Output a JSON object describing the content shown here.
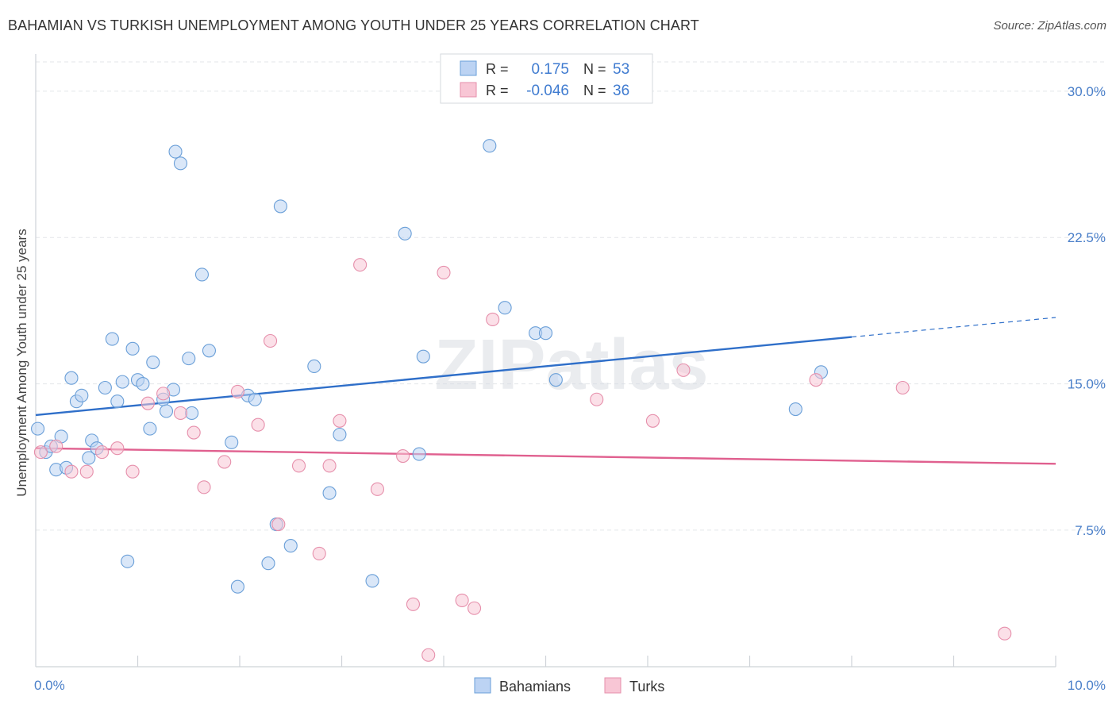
{
  "chart_data": {
    "type": "scatter",
    "title": "BAHAMIAN VS TURKISH UNEMPLOYMENT AMONG YOUTH UNDER 25 YEARS CORRELATION CHART",
    "source": "Source: ZipAtlas.com",
    "xlabel": "",
    "ylabel": "Unemployment Among Youth under 25 years",
    "xlim": [
      0,
      10
    ],
    "ylim": [
      0.5,
      31.5
    ],
    "x_tick_labels": [
      "0.0%",
      "10.0%"
    ],
    "y_ticks": [
      7.5,
      15.0,
      22.5,
      30.0
    ],
    "y_tick_labels": [
      "7.5%",
      "15.0%",
      "22.5%",
      "30.0%"
    ],
    "grid": true,
    "watermark": "ZIPatlas",
    "legend": {
      "placement": "top-center",
      "rows": [
        {
          "r_label": "R =",
          "r_value": "0.175",
          "n_label": "N =",
          "n_value": "53"
        },
        {
          "r_label": "R =",
          "r_value": "-0.046",
          "n_label": "N =",
          "n_value": "36"
        }
      ]
    },
    "bottom_legend": [
      "Bahamians",
      "Turks"
    ],
    "series": [
      {
        "name": "Bahamians",
        "color": "#6a9fd8",
        "fill": "#bcd3f3",
        "trend": {
          "x0": 0.0,
          "y0": 13.4,
          "x1": 8.0,
          "y1": 17.4,
          "dash_x1": 10.0,
          "dash_y1": 18.4,
          "color": "#2f6fc9"
        },
        "points": [
          [
            0.02,
            12.7
          ],
          [
            0.1,
            11.5
          ],
          [
            0.15,
            11.8
          ],
          [
            0.2,
            10.6
          ],
          [
            0.25,
            12.3
          ],
          [
            0.3,
            10.7
          ],
          [
            0.35,
            15.3
          ],
          [
            0.4,
            14.1
          ],
          [
            0.45,
            14.4
          ],
          [
            0.52,
            11.2
          ],
          [
            0.55,
            12.1
          ],
          [
            0.6,
            11.7
          ],
          [
            0.68,
            14.8
          ],
          [
            0.75,
            17.3
          ],
          [
            0.8,
            14.1
          ],
          [
            0.85,
            15.1
          ],
          [
            0.9,
            5.9
          ],
          [
            0.95,
            16.8
          ],
          [
            1.0,
            15.2
          ],
          [
            1.05,
            15.0
          ],
          [
            1.12,
            12.7
          ],
          [
            1.15,
            16.1
          ],
          [
            1.25,
            14.2
          ],
          [
            1.28,
            13.6
          ],
          [
            1.35,
            14.7
          ],
          [
            1.37,
            26.9
          ],
          [
            1.42,
            26.3
          ],
          [
            1.5,
            16.3
          ],
          [
            1.53,
            13.5
          ],
          [
            1.63,
            20.6
          ],
          [
            1.7,
            16.7
          ],
          [
            1.92,
            12.0
          ],
          [
            1.98,
            4.6
          ],
          [
            2.08,
            14.4
          ],
          [
            2.15,
            14.2
          ],
          [
            2.28,
            5.8
          ],
          [
            2.36,
            7.8
          ],
          [
            2.4,
            24.1
          ],
          [
            2.5,
            6.7
          ],
          [
            2.73,
            15.9
          ],
          [
            2.88,
            9.4
          ],
          [
            2.98,
            12.4
          ],
          [
            3.3,
            4.9
          ],
          [
            3.62,
            22.7
          ],
          [
            3.76,
            11.4
          ],
          [
            3.8,
            16.4
          ],
          [
            4.45,
            27.2
          ],
          [
            4.6,
            18.9
          ],
          [
            4.9,
            17.6
          ],
          [
            5.0,
            17.6
          ],
          [
            5.1,
            15.2
          ],
          [
            7.45,
            13.7
          ],
          [
            7.7,
            15.6
          ]
        ]
      },
      {
        "name": "Turks",
        "color": "#e68fab",
        "fill": "#f8c6d5",
        "trend": {
          "x0": 0.0,
          "y0": 11.7,
          "x1": 10.0,
          "y1": 10.9,
          "color": "#e0608f"
        },
        "points": [
          [
            0.05,
            11.5
          ],
          [
            0.2,
            11.8
          ],
          [
            0.35,
            10.5
          ],
          [
            0.5,
            10.5
          ],
          [
            0.65,
            11.5
          ],
          [
            0.8,
            11.7
          ],
          [
            0.95,
            10.5
          ],
          [
            1.1,
            14.0
          ],
          [
            1.25,
            14.5
          ],
          [
            1.42,
            13.5
          ],
          [
            1.55,
            12.5
          ],
          [
            1.65,
            9.7
          ],
          [
            1.85,
            11.0
          ],
          [
            1.98,
            14.6
          ],
          [
            2.18,
            12.9
          ],
          [
            2.3,
            17.2
          ],
          [
            2.38,
            7.8
          ],
          [
            2.58,
            10.8
          ],
          [
            2.78,
            6.3
          ],
          [
            2.88,
            10.8
          ],
          [
            2.98,
            13.1
          ],
          [
            3.18,
            21.1
          ],
          [
            3.35,
            9.6
          ],
          [
            3.6,
            11.3
          ],
          [
            3.7,
            3.7
          ],
          [
            3.85,
            1.1
          ],
          [
            4.0,
            20.7
          ],
          [
            4.18,
            3.9
          ],
          [
            4.3,
            3.5
          ],
          [
            4.48,
            18.3
          ],
          [
            5.5,
            14.2
          ],
          [
            6.05,
            13.1
          ],
          [
            6.35,
            15.7
          ],
          [
            7.65,
            15.2
          ],
          [
            8.5,
            14.8
          ],
          [
            9.5,
            2.2
          ]
        ]
      }
    ]
  }
}
